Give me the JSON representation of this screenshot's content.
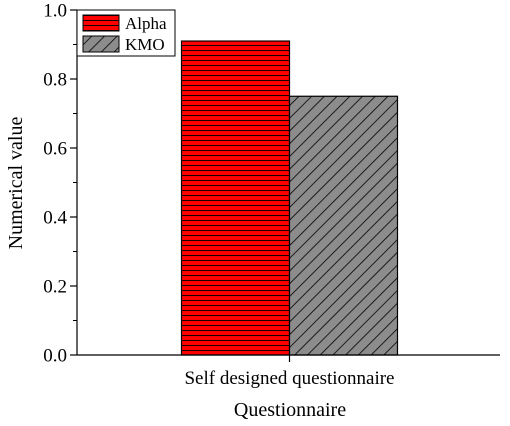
{
  "chart_data": {
    "type": "bar",
    "categories": [
      "Self designed questionnaire"
    ],
    "series": [
      {
        "name": "Alpha",
        "values": [
          0.91
        ],
        "color": "#ff0000",
        "pattern": "horizontal-lines"
      },
      {
        "name": "KMO",
        "values": [
          0.75
        ],
        "color": "#8c8c8c",
        "pattern": "diagonal-hatch"
      }
    ],
    "title": "",
    "xlabel": "Questionnaire",
    "ylabel": "Numerical value",
    "ylim": [
      0,
      1.0
    ],
    "yticks": [
      "0.0",
      "0.2",
      "0.4",
      "0.6",
      "0.8",
      "1.0"
    ],
    "grid": false,
    "legend_position": "top-left"
  }
}
